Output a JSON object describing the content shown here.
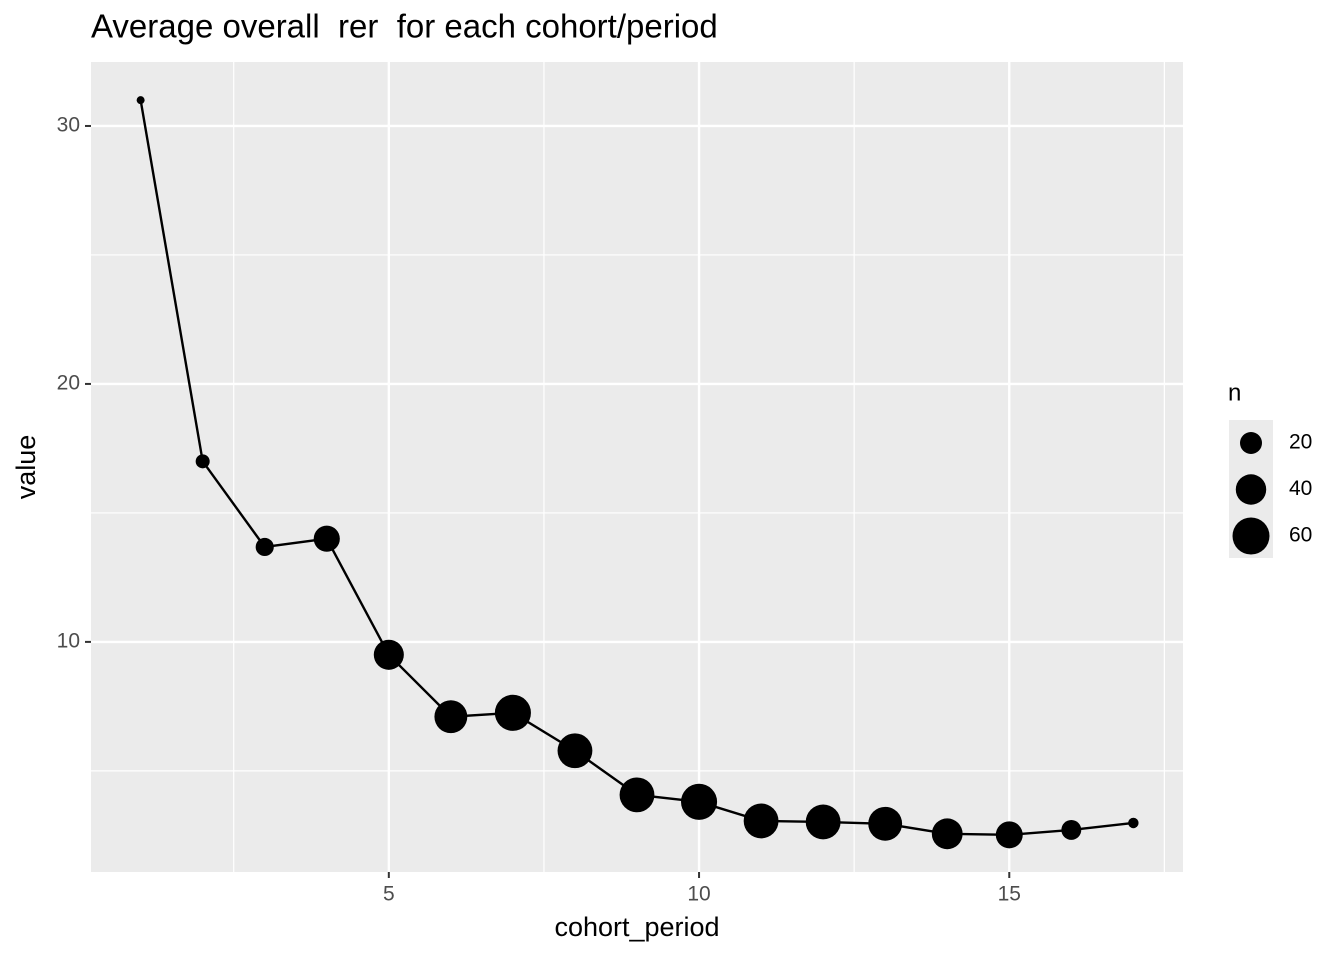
{
  "chart_data": {
    "type": "line-bubble",
    "title": "Average overall  rer  for each cohort/period",
    "xlabel": "cohort_period",
    "ylabel": "value",
    "x": [
      1,
      2,
      3,
      4,
      5,
      6,
      7,
      8,
      9,
      10,
      11,
      12,
      13,
      14,
      15,
      16,
      17
    ],
    "series": [
      {
        "name": "value",
        "color": "#000000",
        "values": [
          31.0,
          17.0,
          13.68,
          14.0,
          9.5,
          7.1,
          7.25,
          5.78,
          4.07,
          3.8,
          3.06,
          3.02,
          2.95,
          2.56,
          2.52,
          2.71,
          2.98
        ],
        "sizes": [
          1,
          7,
          13,
          29,
          39,
          47,
          57,
          53,
          53,
          57,
          53,
          53,
          50,
          41,
          31,
          16,
          3
        ]
      }
    ],
    "xlim": [
      0.2,
      17.8
    ],
    "xticks": [
      5,
      10,
      15
    ],
    "xminor": [
      2.5,
      7.5,
      12.5,
      17.5
    ],
    "ylim": [
      1.08,
      32.48
    ],
    "yticks": [
      10,
      20,
      30
    ],
    "yminor": [
      5,
      15,
      25
    ],
    "grid": true,
    "size_legend": {
      "title": "n",
      "breaks": [
        20,
        40,
        60
      ]
    }
  }
}
